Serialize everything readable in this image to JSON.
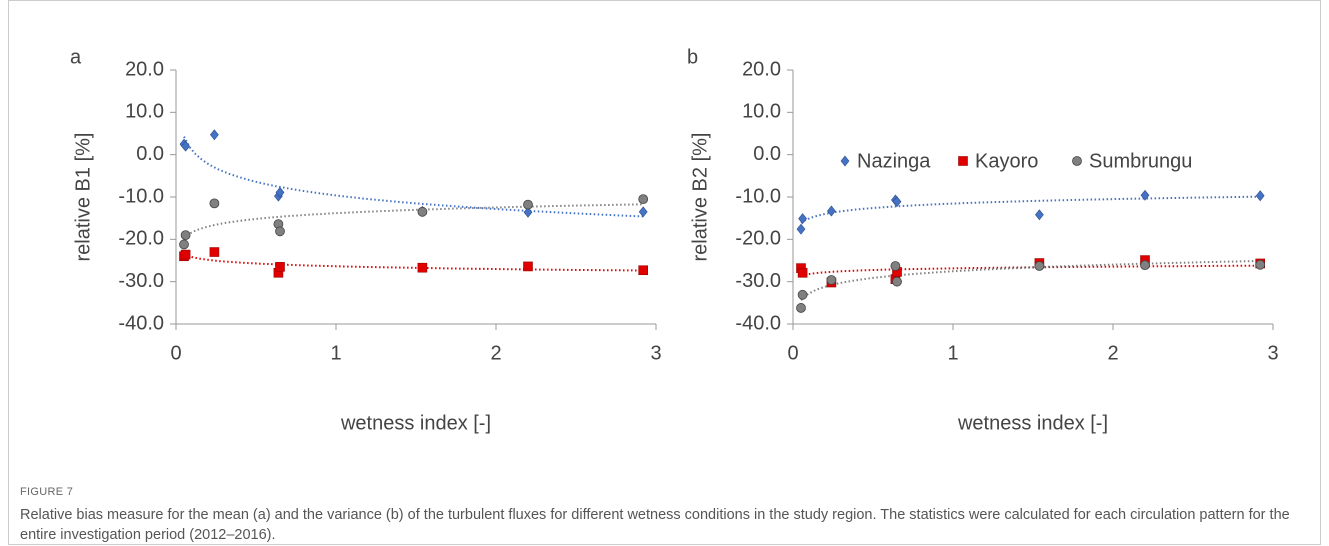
{
  "chart_data": [
    {
      "type": "scatter",
      "panel_label": "a",
      "x_label": "wetness index [-]",
      "y_label": "relative B1 [%]",
      "x": [
        0.05,
        0.06,
        0.24,
        0.64,
        0.65,
        1.54,
        2.2,
        2.92
      ],
      "series": [
        {
          "color": "#4472c4",
          "marker": "diamond",
          "values": [
            2.5,
            2.0,
            4.7,
            -9.8,
            -8.9,
            -13.4,
            -13.6,
            -13.5
          ]
        },
        {
          "color": "#e00000",
          "marker": "square",
          "values": [
            -24.0,
            -23.6,
            -23.0,
            -27.9,
            -26.5,
            -26.7,
            -26.4,
            -27.3
          ]
        },
        {
          "color": "#808080",
          "marker": "circle",
          "values": [
            -21.2,
            -19.0,
            -11.5,
            -16.4,
            -18.1,
            -13.5,
            -11.8,
            -10.5
          ]
        }
      ],
      "trendline": "log",
      "legend": false,
      "xlim": [
        0,
        3
      ],
      "xticks": [
        0,
        1,
        2,
        3
      ],
      "ylim": [
        -40,
        20
      ],
      "yticks": [
        {
          "value": -40,
          "label": "-40.0"
        },
        {
          "value": -30,
          "label": "-30.0"
        },
        {
          "value": -20,
          "label": "-20.0"
        },
        {
          "value": -10,
          "label": "-10.0"
        },
        {
          "value": 0,
          "label": "0.0"
        },
        {
          "value": 10,
          "label": "10.0"
        },
        {
          "value": 20,
          "label": "20.0"
        }
      ]
    },
    {
      "type": "scatter",
      "panel_label": "b",
      "x_label": "wetness index [-]",
      "y_label": "relative B2 [%]",
      "x": [
        0.05,
        0.06,
        0.24,
        0.64,
        0.65,
        1.54,
        2.2,
        2.92
      ],
      "series": [
        {
          "name": "Nazinga",
          "color": "#4472c4",
          "marker": "diamond",
          "values": [
            -17.6,
            -15.1,
            -13.3,
            -10.7,
            -11.1,
            -14.2,
            -9.6,
            -9.7
          ]
        },
        {
          "name": "Kayoro",
          "color": "#e00000",
          "marker": "square",
          "values": [
            -26.8,
            -27.9,
            -30.2,
            -29.4,
            -27.7,
            -25.6,
            -24.9,
            -25.7
          ]
        },
        {
          "name": "Sumbrungu",
          "color": "#808080",
          "marker": "circle",
          "values": [
            -36.2,
            -33.1,
            -29.6,
            -26.3,
            -30.0,
            -26.3,
            -26.1,
            -26.0
          ]
        }
      ],
      "trendline": "log",
      "legend": true,
      "xlim": [
        0,
        3
      ],
      "xticks": [
        0,
        1,
        2,
        3
      ],
      "ylim": [
        -40,
        20
      ],
      "yticks": [
        {
          "value": -40,
          "label": "-40.0"
        },
        {
          "value": -30,
          "label": "-30.0"
        },
        {
          "value": -20,
          "label": "-20.0"
        },
        {
          "value": -10,
          "label": "-10.0"
        },
        {
          "value": 0,
          "label": "0.0"
        },
        {
          "value": 10,
          "label": "10.0"
        },
        {
          "value": 20,
          "label": "20.0"
        }
      ]
    }
  ],
  "figure": {
    "label": "FIGURE 7",
    "caption": "Relative bias measure for the mean (a) and the variance (b) of the turbulent fluxes for different wetness conditions in the study region. The statistics were calculated for each circulation pattern for the entire investigation period (2012–2016)."
  }
}
